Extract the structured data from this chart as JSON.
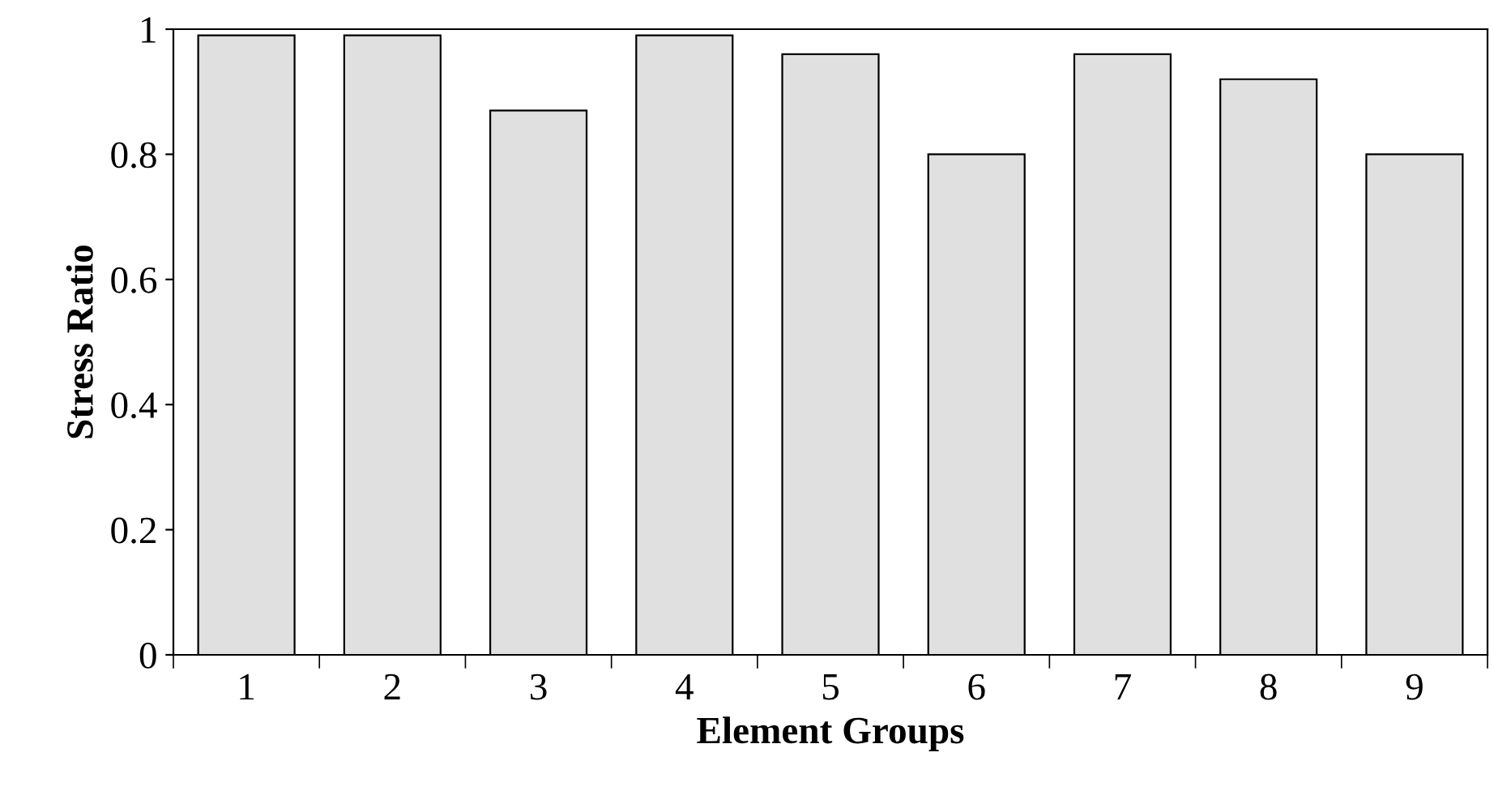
{
  "chart_data": {
    "type": "bar",
    "xlabel": "Element Groups",
    "ylabel": "Stress Ratio",
    "categories": [
      "1",
      "2",
      "3",
      "4",
      "5",
      "6",
      "7",
      "8",
      "9"
    ],
    "values": [
      0.99,
      0.99,
      0.87,
      0.99,
      0.96,
      0.8,
      0.96,
      0.92,
      0.8
    ],
    "color": "#e0e0e0",
    "ylim": [
      0,
      1
    ],
    "yticks": [
      0,
      0.2,
      0.4,
      0.6,
      0.8,
      1
    ],
    "grid": false,
    "legend": false
  }
}
